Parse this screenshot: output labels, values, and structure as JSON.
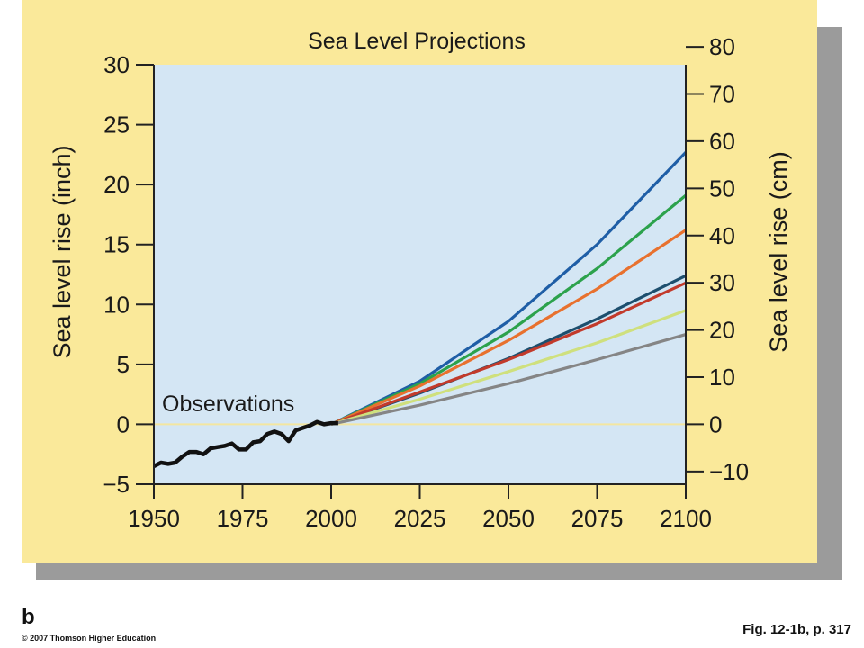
{
  "figure": {
    "panel_letter": "b",
    "copyright": "© 2007 Thomson Higher Education",
    "caption": "Fig. 12-1b, p. 317",
    "colors": {
      "panel_background": "#fae99a",
      "plot_background": "#d4e6f4",
      "shadow": "#9b9b9b",
      "zero_line": "#f3e6a0"
    }
  },
  "chart_data": {
    "type": "line",
    "title": "Sea Level Projections",
    "ylabel": "Sea level rise (inch)",
    "y2label": "Sea level rise (cm)",
    "xlabel": "",
    "xlim": [
      1950,
      2100
    ],
    "ylim": [
      -5,
      30
    ],
    "y2lim": [
      -12.7,
      76.2
    ],
    "grid": false,
    "x_ticks": [
      "1950",
      "1975",
      "2000",
      "2025",
      "2050",
      "2075",
      "2100"
    ],
    "y_ticks": [
      "30",
      "25",
      "20",
      "15",
      "10",
      "5",
      "0",
      "−5"
    ],
    "y2_ticks": [
      "80",
      "70",
      "60",
      "50",
      "40",
      "30",
      "20",
      "10",
      "0",
      "−10"
    ],
    "annotations": [
      "Observations"
    ],
    "observations": {
      "color": "#111111",
      "x": [
        1950,
        1952,
        1954,
        1956,
        1958,
        1960,
        1962,
        1964,
        1966,
        1968,
        1970,
        1972,
        1974,
        1976,
        1978,
        1980,
        1982,
        1984,
        1986,
        1988,
        1990,
        1992,
        1994,
        1996,
        1998,
        2000,
        2002
      ],
      "y": [
        -3.5,
        -3.2,
        -3.3,
        -3.2,
        -2.7,
        -2.3,
        -2.3,
        -2.5,
        -2.0,
        -1.9,
        -1.8,
        -1.6,
        -2.1,
        -2.1,
        -1.5,
        -1.4,
        -0.8,
        -0.6,
        -0.8,
        -1.4,
        -0.5,
        -0.3,
        -0.1,
        0.2,
        0.0,
        0.1,
        0.1
      ]
    },
    "series": [
      {
        "color": "#1f5ea6",
        "x": [
          2000,
          2025,
          2050,
          2075,
          2100
        ],
        "y": [
          0,
          3.6,
          8.6,
          15.0,
          22.7
        ]
      },
      {
        "color": "#2ca24c",
        "x": [
          2000,
          2025,
          2050,
          2075,
          2100
        ],
        "y": [
          0,
          3.4,
          7.7,
          13.0,
          19.1
        ]
      },
      {
        "color": "#e8712e",
        "x": [
          2000,
          2025,
          2050,
          2075,
          2100
        ],
        "y": [
          0,
          3.2,
          7.0,
          11.3,
          16.2
        ]
      },
      {
        "color": "#1d4f6e",
        "x": [
          2000,
          2025,
          2050,
          2075,
          2100
        ],
        "y": [
          0,
          2.6,
          5.5,
          8.8,
          12.4
        ]
      },
      {
        "color": "#c23a2b",
        "x": [
          2000,
          2025,
          2050,
          2075,
          2100
        ],
        "y": [
          0,
          2.7,
          5.4,
          8.4,
          11.8
        ]
      },
      {
        "color": "#cfe07d",
        "x": [
          2000,
          2025,
          2050,
          2075,
          2100
        ],
        "y": [
          0,
          2.1,
          4.4,
          6.8,
          9.5
        ]
      },
      {
        "color": "#858585",
        "x": [
          2000,
          2025,
          2050,
          2075,
          2100
        ],
        "y": [
          0,
          1.6,
          3.4,
          5.4,
          7.5
        ]
      }
    ]
  }
}
